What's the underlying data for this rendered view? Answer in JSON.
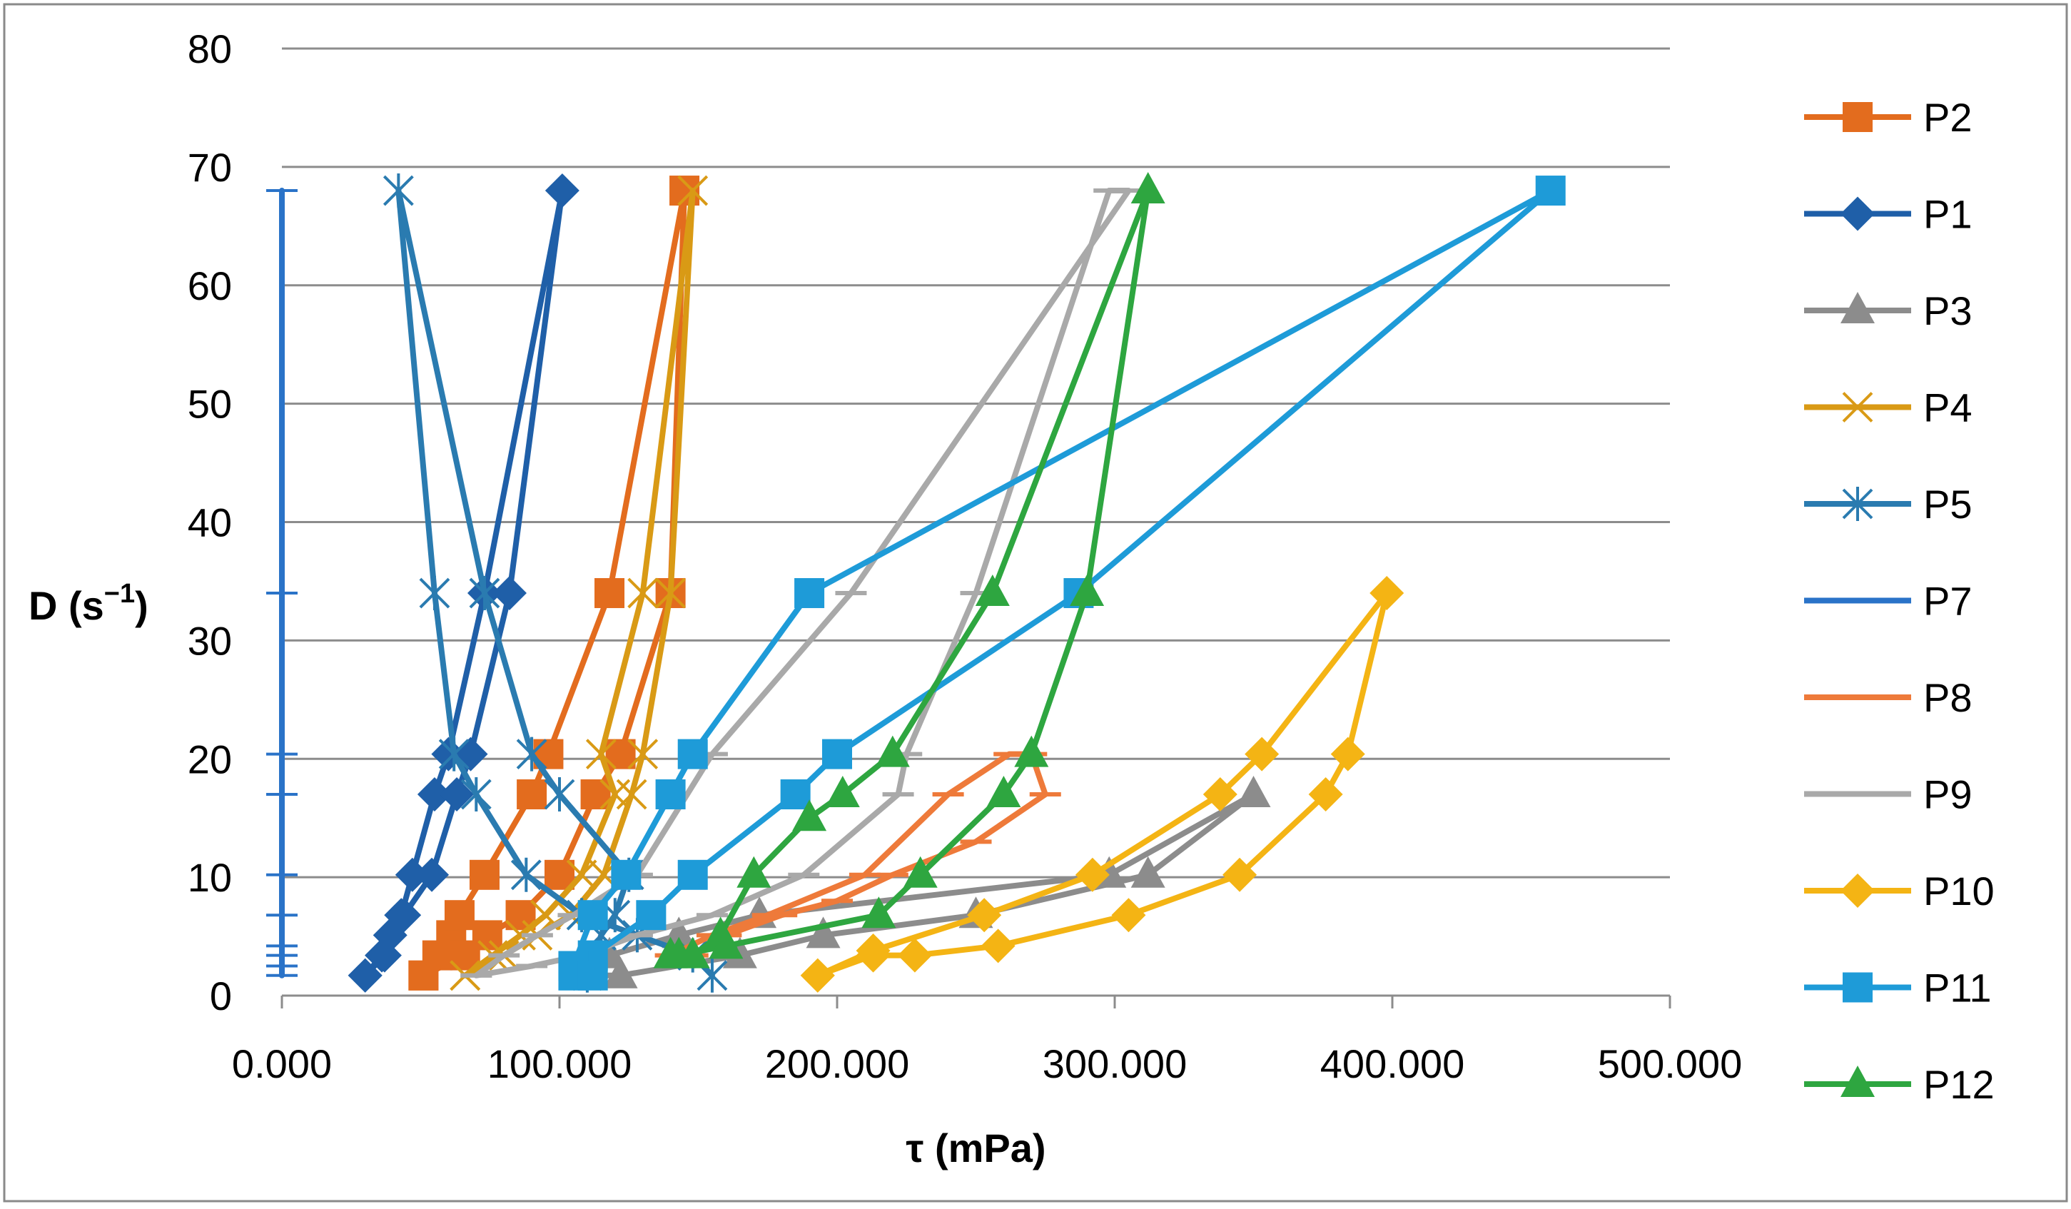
{
  "chart_data": {
    "type": "line",
    "title": "",
    "xlabel": "τ (mPa)",
    "ylabel_main": "D (s",
    "ylabel_sup": "−1",
    "ylabel_close": ")",
    "xlim": [
      0,
      500
    ],
    "ylim": [
      0,
      80
    ],
    "xticks": [
      0,
      100,
      200,
      300,
      400,
      500
    ],
    "xtick_labels": [
      "0.000",
      "100.000",
      "200.000",
      "300.000",
      "400.000",
      "500.000"
    ],
    "yticks": [
      0,
      10,
      20,
      30,
      40,
      50,
      60,
      70,
      80
    ],
    "ytick_labels": [
      "0",
      "10",
      "20",
      "30",
      "40",
      "50",
      "60",
      "70",
      "80"
    ],
    "grid": "horizontal",
    "legend_position": "right",
    "series": [
      {
        "name": "P2",
        "color": "#E36C1E",
        "marker": "square",
        "points": [
          [
            51,
            1.7
          ],
          [
            56,
            3.4
          ],
          [
            61,
            5.1
          ],
          [
            64,
            6.8
          ],
          [
            73,
            10.2
          ],
          [
            90,
            17
          ],
          [
            96,
            20.4
          ],
          [
            118,
            34
          ],
          [
            145,
            68
          ],
          [
            140,
            34
          ],
          [
            122,
            20.4
          ],
          [
            113,
            17
          ],
          [
            100,
            10.2
          ],
          [
            86,
            6.8
          ],
          [
            74,
            5.1
          ],
          [
            66,
            3.4
          ],
          [
            51,
            1.7
          ]
        ]
      },
      {
        "name": "P1",
        "color": "#1F5FA8",
        "marker": "diamond",
        "points": [
          [
            30,
            1.7
          ],
          [
            36,
            3.4
          ],
          [
            39,
            5.1
          ],
          [
            43,
            6.8
          ],
          [
            47,
            10.2
          ],
          [
            55,
            17
          ],
          [
            60,
            20.4
          ],
          [
            73,
            34
          ],
          [
            101,
            68
          ],
          [
            82,
            34
          ],
          [
            68,
            20.4
          ],
          [
            63,
            17
          ],
          [
            54,
            10.2
          ],
          [
            44,
            6.8
          ],
          [
            37,
            3.4
          ],
          [
            30,
            1.7
          ]
        ]
      },
      {
        "name": "P3",
        "color": "#8C8C8C",
        "marker": "triangle",
        "points": [
          [
            108,
            1.7
          ],
          [
            118,
            3.4
          ],
          [
            143,
            5.1
          ],
          [
            172,
            6.8
          ],
          [
            298,
            10.2
          ],
          [
            350,
            17
          ],
          [
            312,
            10.2
          ],
          [
            250,
            6.8
          ],
          [
            195,
            5.1
          ],
          [
            165,
            3.4
          ],
          [
            122,
            1.7
          ],
          [
            108,
            1.7
          ]
        ]
      },
      {
        "name": "P4",
        "color": "#D99A15",
        "marker": "x",
        "points": [
          [
            66,
            1.7
          ],
          [
            76,
            3.4
          ],
          [
            86,
            5.1
          ],
          [
            95,
            6.8
          ],
          [
            108,
            10.2
          ],
          [
            120,
            17
          ],
          [
            115,
            20.4
          ],
          [
            130,
            34
          ],
          [
            148,
            68
          ],
          [
            140,
            34
          ],
          [
            130,
            20.4
          ],
          [
            126,
            17
          ],
          [
            116,
            10.2
          ],
          [
            104,
            6.8
          ],
          [
            92,
            5.1
          ],
          [
            80,
            3.4
          ],
          [
            66,
            1.7
          ]
        ]
      },
      {
        "name": "P5",
        "color": "#2A7BB0",
        "marker": "star",
        "points": [
          [
            110,
            1.7
          ],
          [
            115,
            5.1
          ],
          [
            120,
            6.8
          ],
          [
            125,
            10.2
          ],
          [
            100,
            17
          ],
          [
            90,
            20.4
          ],
          [
            73,
            34
          ],
          [
            42,
            68
          ],
          [
            55,
            34
          ],
          [
            62,
            20.4
          ],
          [
            70,
            17
          ],
          [
            88,
            10.2
          ],
          [
            108,
            6.8
          ],
          [
            128,
            5.1
          ],
          [
            148,
            3.4
          ],
          [
            155,
            1.7
          ]
        ]
      },
      {
        "name": "P7",
        "color": "#2A73C8",
        "marker": "plus",
        "points": [
          [
            0,
            1.7
          ],
          [
            0,
            2.5
          ],
          [
            0,
            3.4
          ],
          [
            0,
            4.2
          ],
          [
            0,
            6.8
          ],
          [
            0,
            10.2
          ],
          [
            0,
            17
          ],
          [
            0,
            20.4
          ],
          [
            0,
            34
          ],
          [
            0,
            68
          ]
        ]
      },
      {
        "name": "P8",
        "color": "#EE7A3A",
        "marker": "dash",
        "points": [
          [
            140,
            3.4
          ],
          [
            155,
            5.1
          ],
          [
            175,
            6.8
          ],
          [
            210,
            10.2
          ],
          [
            240,
            17
          ],
          [
            262,
            20.4
          ],
          [
            270,
            20.4
          ],
          [
            275,
            17
          ],
          [
            250,
            13
          ],
          [
            220,
            10.2
          ],
          [
            200,
            8
          ],
          [
            180,
            6.8
          ],
          [
            160,
            5.1
          ],
          [
            148,
            3.4
          ]
        ]
      },
      {
        "name": "P9",
        "color": "#A9A9A9",
        "marker": "dash",
        "points": [
          [
            70,
            1.7
          ],
          [
            80,
            3.4
          ],
          [
            92,
            5.1
          ],
          [
            105,
            6.8
          ],
          [
            128,
            10.2
          ],
          [
            155,
            20.4
          ],
          [
            205,
            34
          ],
          [
            305,
            68
          ],
          [
            298,
            68
          ],
          [
            250,
            34
          ],
          [
            225,
            20.4
          ],
          [
            222,
            17
          ],
          [
            188,
            10.2
          ],
          [
            155,
            6.8
          ],
          [
            128,
            5.1
          ],
          [
            108,
            3.4
          ],
          [
            90,
            2.5
          ],
          [
            70,
            1.7
          ]
        ]
      },
      {
        "name": "P10",
        "color": "#F4B414",
        "marker": "diamond",
        "points": [
          [
            193,
            1.7
          ],
          [
            213,
            3.4
          ],
          [
            228,
            3.4
          ],
          [
            258,
            4.2
          ],
          [
            305,
            6.8
          ],
          [
            345,
            10.2
          ],
          [
            376,
            17
          ],
          [
            384,
            20.4
          ],
          [
            398,
            34
          ],
          [
            353,
            20.4
          ],
          [
            338,
            17
          ],
          [
            292,
            10.2
          ],
          [
            253,
            6.8
          ],
          [
            213,
            3.8
          ],
          [
            193,
            1.7
          ]
        ]
      },
      {
        "name": "P11",
        "color": "#1E9BD8",
        "marker": "square",
        "points": [
          [
            105,
            1.7
          ],
          [
            112,
            3.4
          ],
          [
            133,
            6.8
          ],
          [
            148,
            10.2
          ],
          [
            185,
            17
          ],
          [
            200,
            20.4
          ],
          [
            287,
            34
          ],
          [
            457,
            68
          ],
          [
            190,
            34
          ],
          [
            148,
            20.4
          ],
          [
            140,
            17
          ],
          [
            124,
            10.2
          ],
          [
            112,
            6.8
          ],
          [
            105,
            2.5
          ],
          [
            112,
            1.7
          ]
        ]
      },
      {
        "name": "P12",
        "color": "#2EA640",
        "marker": "triangle",
        "points": [
          [
            140,
            3.4
          ],
          [
            148,
            3.4
          ],
          [
            158,
            5.1
          ],
          [
            170,
            10.2
          ],
          [
            190,
            15
          ],
          [
            202,
            17
          ],
          [
            220,
            20.4
          ],
          [
            256,
            34
          ],
          [
            312,
            68
          ],
          [
            290,
            34
          ],
          [
            270,
            20.4
          ],
          [
            260,
            17
          ],
          [
            230,
            10.2
          ],
          [
            215,
            6.8
          ],
          [
            160,
            4.2
          ],
          [
            143,
            3.4
          ]
        ]
      }
    ]
  }
}
